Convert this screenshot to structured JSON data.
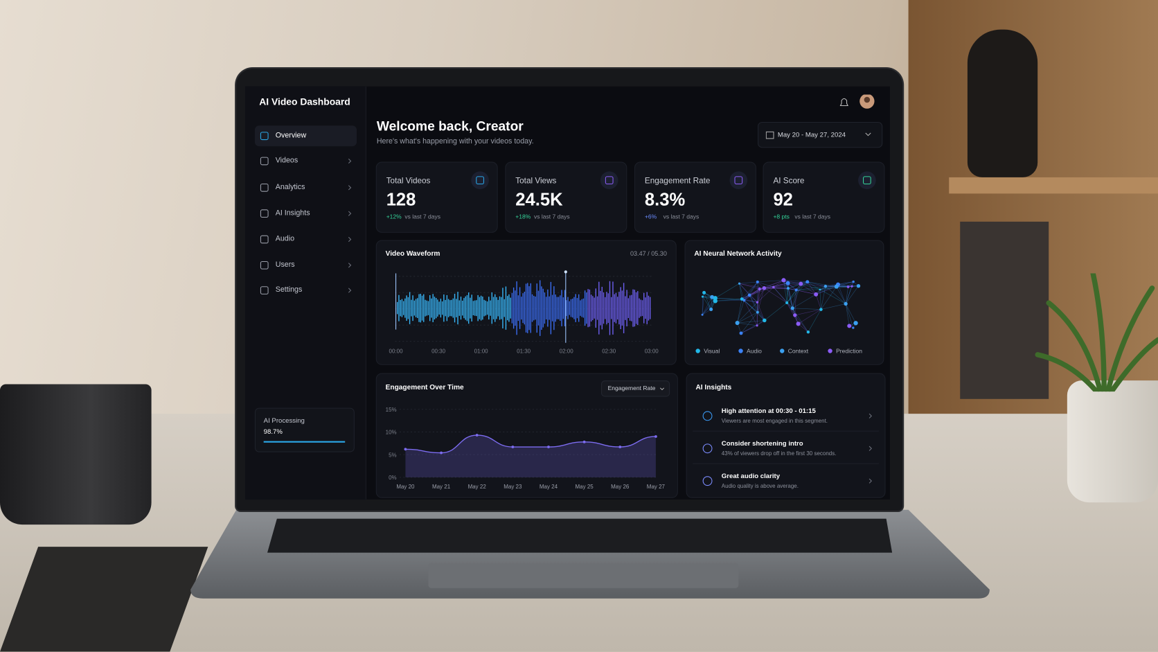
{
  "sidebar": {
    "title": "AI Video Dashboard",
    "nav": [
      "Overview",
      "Videos",
      "Analytics",
      "AI Insights",
      "Audio",
      "Users",
      "Settings"
    ],
    "processing": {
      "label": "AI Processing",
      "value": "98.7%"
    }
  },
  "header": {
    "title": "Welcome back, Creator",
    "subtitle": "Here's what's happening with your videos today.",
    "date_range": "May 20 - May 27, 2024"
  },
  "kpis": [
    {
      "label": "Total Videos",
      "value": "128",
      "change": "+12%",
      "note": "vs last 7 days"
    },
    {
      "label": "Total Views",
      "value": "24.5K",
      "change": "+18%",
      "note": "vs last 7 days"
    },
    {
      "label": "Engagement Rate",
      "value": "8.3%",
      "change": "+6%",
      "note": "vs last 7 days"
    },
    {
      "label": "AI Score",
      "value": "92",
      "change": "+8 pts",
      "note": "vs last 7 days"
    }
  ],
  "waveform": {
    "title": "Video Waveform",
    "time": "03.47 / 05.30",
    "xticks": [
      "00:00",
      "00:30",
      "01:00",
      "01:30",
      "02:00",
      "02:30",
      "03:00"
    ]
  },
  "neural": {
    "title": "AI Neural Network Activity",
    "legend": [
      {
        "name": "Visual",
        "color": "#22b8e8"
      },
      {
        "name": "Audio",
        "color": "#3b82f6"
      },
      {
        "name": "Context",
        "color": "#3ba0f0"
      },
      {
        "name": "Prediction",
        "color": "#8b5cf6"
      }
    ]
  },
  "engagement": {
    "type": "line",
    "title": "Engagement Over Time",
    "selector": "Engagement Rate",
    "categories": [
      "May 20",
      "May 21",
      "May 22",
      "May 23",
      "May 24",
      "May 25",
      "May 26",
      "May 27"
    ],
    "values": [
      6.2,
      5.4,
      9.3,
      6.7,
      6.7,
      7.8,
      6.7,
      9.0
    ],
    "color": "#7c6cf0",
    "ylim": [
      0,
      15
    ],
    "yticks": [
      {
        "value": 0,
        "label": "0%"
      },
      {
        "value": 5,
        "label": "5%"
      },
      {
        "value": 10,
        "label": "10%"
      },
      {
        "value": 15,
        "label": "15%"
      }
    ],
    "grid": true
  },
  "insights": {
    "title": "AI Insights",
    "items": [
      {
        "title": "High attention at 00:30 - 01:15",
        "text": "Viewers are most engaged in this segment."
      },
      {
        "title": "Consider shortening intro",
        "text": "43% of viewers drop off in the first 30 seconds."
      },
      {
        "title": "Great audio clarity",
        "text": "Audio quality is above average."
      }
    ]
  }
}
